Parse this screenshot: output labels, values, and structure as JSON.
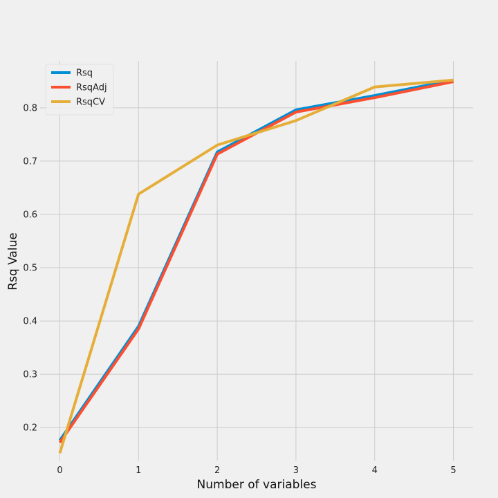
{
  "chart_data": {
    "type": "line",
    "title": "",
    "xlabel": "Number of variables",
    "ylabel": "Rsq Value",
    "x": [
      0,
      1,
      2,
      3,
      4,
      5
    ],
    "xticks": [
      "0",
      "1",
      "2",
      "3",
      "4",
      "5"
    ],
    "yticks": [
      "0.2",
      "0.3",
      "0.4",
      "0.5",
      "0.6",
      "0.7",
      "0.8"
    ],
    "xlim": [
      -0.25,
      5.25
    ],
    "ylim": [
      0.138,
      0.888
    ],
    "grid": true,
    "legend_position": "top-left",
    "series": [
      {
        "name": "Rsq",
        "color": "#008fd5",
        "values": [
          0.176,
          0.39,
          0.717,
          0.796,
          0.823,
          0.852
        ]
      },
      {
        "name": "RsqAdj",
        "color": "#fc4f30",
        "values": [
          0.172,
          0.385,
          0.713,
          0.792,
          0.819,
          0.849
        ]
      },
      {
        "name": "RsqCV",
        "color": "#e5ae38",
        "values": [
          0.152,
          0.638,
          0.73,
          0.776,
          0.839,
          0.852
        ]
      }
    ]
  }
}
